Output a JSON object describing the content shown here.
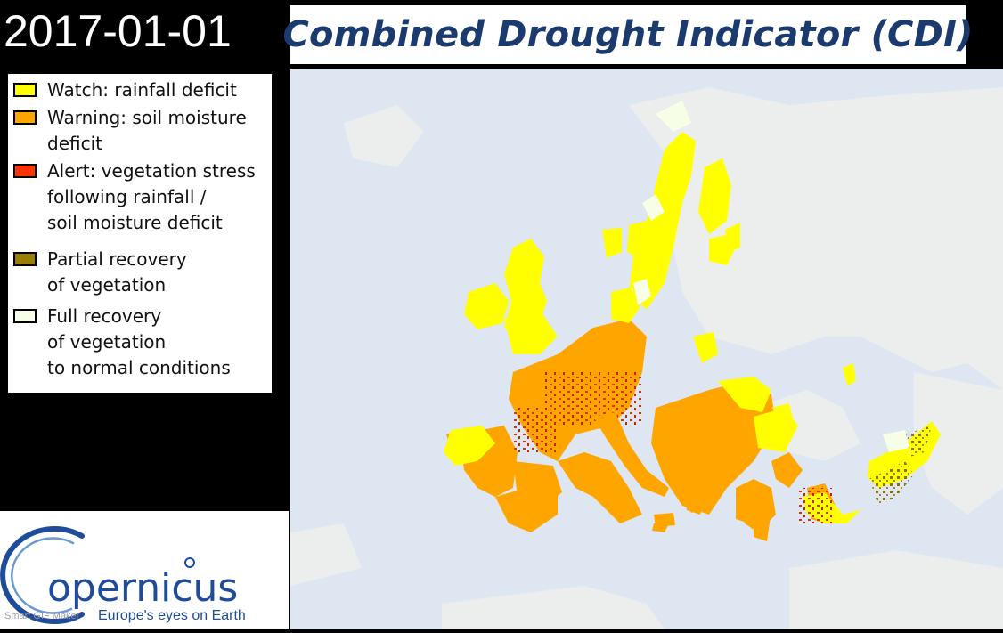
{
  "header": {
    "date": "2017-01-01",
    "title": "Combined Drought Indicator (CDI)"
  },
  "legend": {
    "items": [
      {
        "lines": [
          "Watch: rainfall deficit"
        ],
        "color": "#ffff00",
        "icon": "watch-swatch"
      },
      {
        "lines": [
          "Warning: soil moisture",
          "deficit"
        ],
        "color": "#ffa500",
        "icon": "warning-swatch"
      },
      {
        "lines": [
          "Alert: vegetation stress",
          "following rainfall /",
          "soil moisture deficit"
        ],
        "color": "#ff3300",
        "icon": "alert-swatch"
      },
      {
        "lines": [
          "Partial recovery",
          "of vegetation"
        ],
        "color": "#9b7d00",
        "icon": "partial-recovery-swatch"
      },
      {
        "lines": [
          "Full recovery",
          "of vegetation",
          "to normal conditions"
        ],
        "color": "#f6ffe6",
        "icon": "full-recovery-swatch"
      }
    ]
  },
  "logo": {
    "name": "opernicus",
    "tagline": "Europe's eyes on Earth",
    "color": "#1f4c9a"
  },
  "watermark": "Smart GIF Maker",
  "map": {
    "sea_color": "#dde6f1",
    "land_color": "#eceeee"
  }
}
